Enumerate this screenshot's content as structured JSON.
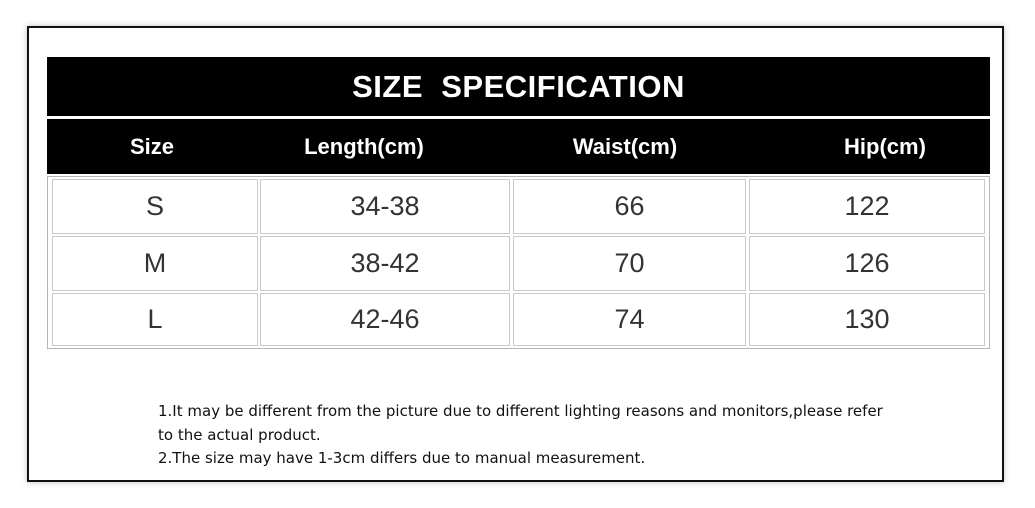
{
  "title": "SIZE  SPECIFICATION",
  "table": {
    "headers": [
      "Size",
      "Length(cm)",
      "Waist(cm)",
      "Hip(cm)"
    ],
    "rows": [
      [
        "S",
        "34-38",
        "66",
        "122"
      ],
      [
        "M",
        "38-42",
        "70",
        "126"
      ],
      [
        "L",
        "42-46",
        "74",
        "130"
      ]
    ]
  },
  "notes": [
    "1.It may be different from the picture due to different lighting reasons and monitors,please refer to the actual product.",
    "2.The size may have 1-3cm differs due to manual measurement."
  ]
}
